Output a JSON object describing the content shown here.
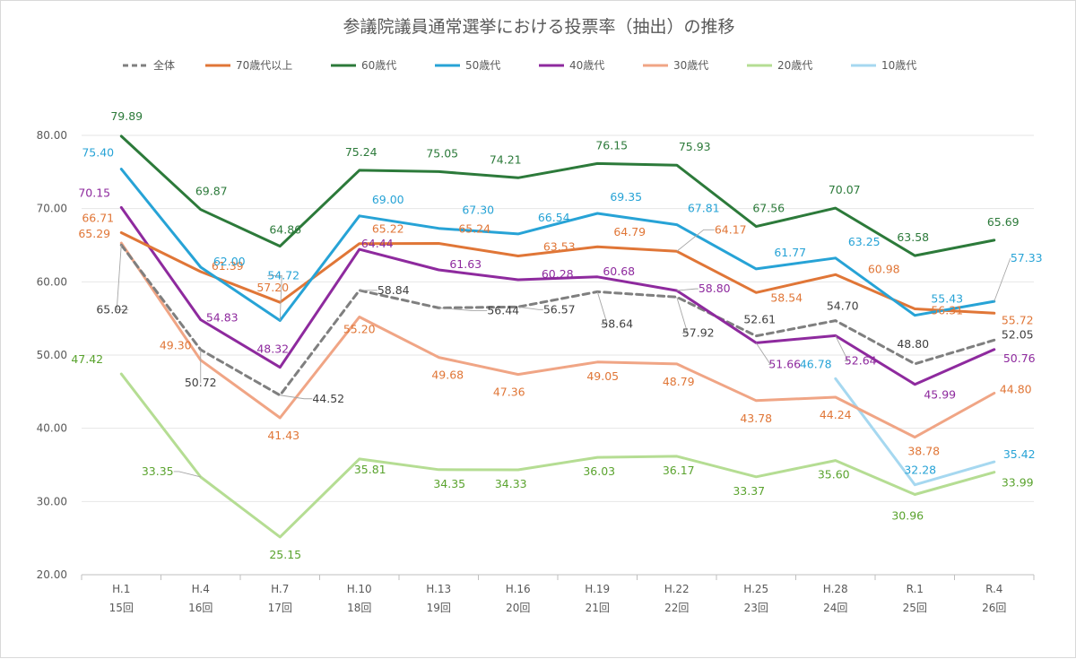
{
  "chart_data": {
    "type": "line",
    "title": "参議院議員通常選挙における投票率（抽出）の推移",
    "categories": [
      [
        "H.1",
        "15回"
      ],
      [
        "H.4",
        "16回"
      ],
      [
        "H.7",
        "17回"
      ],
      [
        "H.10",
        "18回"
      ],
      [
        "H.13",
        "19回"
      ],
      [
        "H.16",
        "20回"
      ],
      [
        "H.19",
        "21回"
      ],
      [
        "H.22",
        "22回"
      ],
      [
        "H.25",
        "23回"
      ],
      [
        "H.28",
        "24回"
      ],
      [
        "R.1",
        "25回"
      ],
      [
        "R.4",
        "26回"
      ]
    ],
    "ylim": [
      20,
      80
    ],
    "yticks": [
      "20.00",
      "30.00",
      "40.00",
      "50.00",
      "60.00",
      "70.00",
      "80.00"
    ],
    "grid": true,
    "legend_position": "top",
    "series": [
      {
        "name": "全体",
        "color": "#7f7f7f",
        "dashed": true,
        "values": [
          65.02,
          50.72,
          44.52,
          58.84,
          56.44,
          56.57,
          58.64,
          57.92,
          52.61,
          54.7,
          48.8,
          52.05
        ],
        "labels": [
          "65.02",
          "50.72",
          "44.52",
          "58.84",
          "56.44",
          "56.57",
          "58.64",
          "57.92",
          "52.61",
          "54.70",
          "48.80",
          "52.05"
        ],
        "label_color": "#404040"
      },
      {
        "name": "70歳代以上",
        "color": "#e07637",
        "values": [
          66.71,
          61.39,
          57.2,
          65.22,
          65.24,
          63.53,
          64.79,
          64.17,
          58.54,
          60.98,
          56.31,
          55.72
        ],
        "labels": [
          "66.71",
          "61.39",
          "57.20",
          "65.22",
          "65.24",
          "63.53",
          "64.79",
          "64.17",
          "58.54",
          "60.98",
          "56.31",
          "55.72"
        ],
        "label_color": "#e07637"
      },
      {
        "name": "60歳代",
        "color": "#2c7a3a",
        "values": [
          79.89,
          69.87,
          64.86,
          75.24,
          75.05,
          74.21,
          76.15,
          75.93,
          67.56,
          70.07,
          63.58,
          65.69
        ],
        "labels": [
          "79.89",
          "69.87",
          "64.86",
          "75.24",
          "75.05",
          "74.21",
          "76.15",
          "75.93",
          "67.56",
          "70.07",
          "63.58",
          "65.69"
        ],
        "label_color": "#2c7a3a"
      },
      {
        "name": "50歳代",
        "color": "#27a3d6",
        "values": [
          75.4,
          62.0,
          54.72,
          69.0,
          67.3,
          66.54,
          69.35,
          67.81,
          61.77,
          63.25,
          55.43,
          57.33
        ],
        "labels": [
          "75.40",
          "62.00",
          "54.72",
          "69.00",
          "67.30",
          "66.54",
          "69.35",
          "67.81",
          "61.77",
          "63.25",
          "55.43",
          "57.33"
        ],
        "label_color": "#27a3d6"
      },
      {
        "name": "40歳代",
        "color": "#8e2a9e",
        "values": [
          70.15,
          54.83,
          48.32,
          64.44,
          61.63,
          60.28,
          60.68,
          58.8,
          51.66,
          52.64,
          45.99,
          50.76
        ],
        "labels": [
          "70.15",
          "54.83",
          "48.32",
          "64.44",
          "61.63",
          "60.28",
          "60.68",
          "58.80",
          "51.66",
          "52.64",
          "45.99",
          "50.76"
        ],
        "label_color": "#8e2a9e"
      },
      {
        "name": "30歳代",
        "color": "#f0a585",
        "values": [
          65.29,
          49.3,
          41.43,
          55.2,
          49.68,
          47.36,
          49.05,
          48.79,
          43.78,
          44.24,
          38.78,
          44.8
        ],
        "labels": [
          "65.29",
          "49.30",
          "41.43",
          "55.20",
          "49.68",
          "47.36",
          "49.05",
          "48.79",
          "43.78",
          "44.24",
          "38.78",
          "44.80"
        ],
        "label_color": "#e07637"
      },
      {
        "name": "20歳代",
        "color": "#b5dd93",
        "values": [
          47.42,
          33.35,
          25.15,
          35.81,
          34.35,
          34.33,
          36.03,
          36.17,
          33.37,
          35.6,
          30.96,
          33.99
        ],
        "labels": [
          "47.42",
          "33.35",
          "25.15",
          "35.81",
          "34.35",
          "34.33",
          "36.03",
          "36.17",
          "33.37",
          "35.60",
          "30.96",
          "33.99"
        ],
        "label_color": "#5aa32e"
      },
      {
        "name": "10歳代",
        "color": "#a6d8f0",
        "values": [
          null,
          null,
          null,
          null,
          null,
          null,
          null,
          null,
          null,
          46.78,
          32.28,
          35.42
        ],
        "labels": [
          null,
          null,
          null,
          null,
          null,
          null,
          null,
          null,
          null,
          "46.78",
          "32.28",
          "35.42"
        ],
        "label_color": "#27a3d6"
      }
    ]
  }
}
